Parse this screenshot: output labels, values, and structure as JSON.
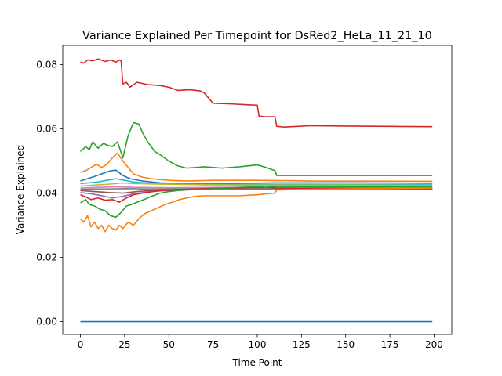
{
  "chart_data": {
    "type": "line",
    "title": "Variance Explained Per Timepoint for DsRed2_HeLa_11_21_10",
    "xlabel": "Time Point",
    "ylabel": "Variance Explained",
    "xlim": [
      -10,
      210
    ],
    "ylim": [
      -0.004,
      0.086
    ],
    "xticks": [
      0,
      25,
      50,
      75,
      100,
      125,
      150,
      175,
      200
    ],
    "yticks": [
      0.0,
      0.02,
      0.04,
      0.06,
      0.08
    ],
    "ytick_labels": [
      "0.00",
      "0.02",
      "0.04",
      "0.06",
      "0.08"
    ],
    "grid": false,
    "legend": "none",
    "series": [
      {
        "color": "#d62728",
        "points": [
          [
            0,
            0.0808
          ],
          [
            2,
            0.0805
          ],
          [
            4,
            0.0815
          ],
          [
            7,
            0.0812
          ],
          [
            10,
            0.0818
          ],
          [
            14,
            0.081
          ],
          [
            17,
            0.0815
          ],
          [
            20,
            0.0808
          ],
          [
            22,
            0.0815
          ],
          [
            23,
            0.0812
          ],
          [
            24,
            0.074
          ],
          [
            26,
            0.0745
          ],
          [
            28,
            0.073
          ],
          [
            32,
            0.0745
          ],
          [
            38,
            0.0738
          ],
          [
            45,
            0.0735
          ],
          [
            50,
            0.073
          ],
          [
            55,
            0.072
          ],
          [
            62,
            0.0722
          ],
          [
            68,
            0.0718
          ],
          [
            70,
            0.0712
          ],
          [
            75,
            0.068
          ],
          [
            85,
            0.0678
          ],
          [
            95,
            0.0675
          ],
          [
            100,
            0.0674
          ],
          [
            101,
            0.064
          ],
          [
            104,
            0.0638
          ],
          [
            110,
            0.0638
          ],
          [
            111,
            0.0608
          ],
          [
            115,
            0.0606
          ],
          [
            130,
            0.061
          ],
          [
            150,
            0.0609
          ],
          [
            175,
            0.0608
          ],
          [
            199,
            0.0607
          ]
        ]
      },
      {
        "color": "#2ca02c",
        "points": [
          [
            0,
            0.053
          ],
          [
            3,
            0.0545
          ],
          [
            5,
            0.0535
          ],
          [
            7,
            0.056
          ],
          [
            10,
            0.054
          ],
          [
            13,
            0.0555
          ],
          [
            15,
            0.055
          ],
          [
            18,
            0.0545
          ],
          [
            21,
            0.056
          ],
          [
            24,
            0.051
          ],
          [
            27,
            0.058
          ],
          [
            30,
            0.062
          ],
          [
            33,
            0.0615
          ],
          [
            35,
            0.059
          ],
          [
            38,
            0.056
          ],
          [
            42,
            0.053
          ],
          [
            45,
            0.052
          ],
          [
            50,
            0.05
          ],
          [
            55,
            0.0485
          ],
          [
            60,
            0.0478
          ],
          [
            70,
            0.0482
          ],
          [
            80,
            0.0478
          ],
          [
            90,
            0.0482
          ],
          [
            100,
            0.0488
          ],
          [
            105,
            0.048
          ],
          [
            110,
            0.047
          ],
          [
            111,
            0.0455
          ],
          [
            130,
            0.0455
          ],
          [
            160,
            0.0455
          ],
          [
            199,
            0.0455
          ]
        ]
      },
      {
        "color": "#ff7f0e",
        "points": [
          [
            0,
            0.0465
          ],
          [
            3,
            0.047
          ],
          [
            6,
            0.048
          ],
          [
            9,
            0.049
          ],
          [
            12,
            0.048
          ],
          [
            15,
            0.049
          ],
          [
            18,
            0.051
          ],
          [
            21,
            0.0525
          ],
          [
            24,
            0.05
          ],
          [
            27,
            0.048
          ],
          [
            30,
            0.046
          ],
          [
            35,
            0.045
          ],
          [
            40,
            0.0445
          ],
          [
            50,
            0.044
          ],
          [
            60,
            0.0438
          ],
          [
            75,
            0.044
          ],
          [
            100,
            0.044
          ],
          [
            130,
            0.0438
          ],
          [
            199,
            0.0437
          ]
        ]
      },
      {
        "color": "#1f77b4",
        "points": [
          [
            0,
            0.0438
          ],
          [
            4,
            0.0445
          ],
          [
            8,
            0.0452
          ],
          [
            12,
            0.046
          ],
          [
            16,
            0.0468
          ],
          [
            20,
            0.0472
          ],
          [
            24,
            0.0455
          ],
          [
            28,
            0.0445
          ],
          [
            35,
            0.0438
          ],
          [
            45,
            0.0432
          ],
          [
            60,
            0.043
          ],
          [
            80,
            0.043
          ],
          [
            110,
            0.0432
          ],
          [
            150,
            0.0432
          ],
          [
            199,
            0.0431
          ]
        ]
      },
      {
        "color": "#17becf",
        "points": [
          [
            0,
            0.043
          ],
          [
            5,
            0.0432
          ],
          [
            10,
            0.0435
          ],
          [
            15,
            0.044
          ],
          [
            20,
            0.0445
          ],
          [
            25,
            0.044
          ],
          [
            30,
            0.0435
          ],
          [
            40,
            0.043
          ],
          [
            60,
            0.0428
          ],
          [
            90,
            0.0427
          ],
          [
            130,
            0.0427
          ],
          [
            199,
            0.0426
          ]
        ]
      },
      {
        "color": "#bcbd22",
        "points": [
          [
            0,
            0.0422
          ],
          [
            8,
            0.0425
          ],
          [
            16,
            0.0428
          ],
          [
            24,
            0.0432
          ],
          [
            30,
            0.043
          ],
          [
            45,
            0.0428
          ],
          [
            70,
            0.0426
          ],
          [
            110,
            0.0425
          ],
          [
            160,
            0.0425
          ],
          [
            199,
            0.0424
          ]
        ]
      },
      {
        "color": "#e377c2",
        "points": [
          [
            0,
            0.0416
          ],
          [
            10,
            0.0418
          ],
          [
            20,
            0.042
          ],
          [
            30,
            0.0418
          ],
          [
            50,
            0.0417
          ],
          [
            80,
            0.0418
          ],
          [
            120,
            0.0418
          ],
          [
            199,
            0.0417
          ]
        ]
      },
      {
        "color": "#7f7f7f",
        "points": [
          [
            0,
            0.0412
          ],
          [
            10,
            0.0413
          ],
          [
            25,
            0.0414
          ],
          [
            40,
            0.0413
          ],
          [
            70,
            0.0414
          ],
          [
            110,
            0.0414
          ],
          [
            199,
            0.0414
          ]
        ]
      },
      {
        "color": "#8c564b",
        "points": [
          [
            0,
            0.0408
          ],
          [
            8,
            0.0405
          ],
          [
            16,
            0.0402
          ],
          [
            24,
            0.04
          ],
          [
            32,
            0.0405
          ],
          [
            45,
            0.041
          ],
          [
            70,
            0.0413
          ],
          [
            110,
            0.0413
          ],
          [
            199,
            0.0412
          ]
        ]
      },
      {
        "color": "#9467bd",
        "points": [
          [
            0,
            0.0402
          ],
          [
            6,
            0.0398
          ],
          [
            12,
            0.0392
          ],
          [
            18,
            0.0385
          ],
          [
            24,
            0.039
          ],
          [
            30,
            0.0398
          ],
          [
            40,
            0.0405
          ],
          [
            55,
            0.041
          ],
          [
            80,
            0.0412
          ],
          [
            120,
            0.0412
          ],
          [
            199,
            0.0411
          ]
        ]
      },
      {
        "color": "#d62728",
        "points": [
          [
            0,
            0.0395
          ],
          [
            3,
            0.0388
          ],
          [
            6,
            0.038
          ],
          [
            10,
            0.0385
          ],
          [
            14,
            0.0378
          ],
          [
            18,
            0.038
          ],
          [
            22,
            0.0372
          ],
          [
            26,
            0.0385
          ],
          [
            30,
            0.0395
          ],
          [
            35,
            0.04
          ],
          [
            45,
            0.0408
          ],
          [
            60,
            0.0412
          ],
          [
            75,
            0.0415
          ],
          [
            100,
            0.0418
          ],
          [
            110,
            0.0418
          ],
          [
            111,
            0.0415
          ],
          [
            150,
            0.0415
          ],
          [
            199,
            0.0414
          ]
        ]
      },
      {
        "color": "#2ca02c",
        "points": [
          [
            0,
            0.037
          ],
          [
            3,
            0.038
          ],
          [
            5,
            0.0365
          ],
          [
            8,
            0.036
          ],
          [
            11,
            0.035
          ],
          [
            14,
            0.0345
          ],
          [
            17,
            0.033
          ],
          [
            20,
            0.0325
          ],
          [
            23,
            0.034
          ],
          [
            26,
            0.036
          ],
          [
            29,
            0.0365
          ],
          [
            32,
            0.0372
          ],
          [
            36,
            0.038
          ],
          [
            40,
            0.039
          ],
          [
            45,
            0.04
          ],
          [
            50,
            0.0405
          ],
          [
            55,
            0.0408
          ],
          [
            60,
            0.041
          ],
          [
            70,
            0.0412
          ],
          [
            80,
            0.0415
          ],
          [
            90,
            0.0418
          ],
          [
            100,
            0.042
          ],
          [
            105,
            0.0418
          ],
          [
            110,
            0.0422
          ],
          [
            111,
            0.042
          ],
          [
            130,
            0.042
          ],
          [
            160,
            0.042
          ],
          [
            199,
            0.042
          ]
        ]
      },
      {
        "color": "#ff7f0e",
        "points": [
          [
            0,
            0.032
          ],
          [
            2,
            0.031
          ],
          [
            4,
            0.033
          ],
          [
            6,
            0.0295
          ],
          [
            8,
            0.031
          ],
          [
            10,
            0.029
          ],
          [
            12,
            0.03
          ],
          [
            14,
            0.028
          ],
          [
            16,
            0.03
          ],
          [
            18,
            0.029
          ],
          [
            20,
            0.0285
          ],
          [
            22,
            0.03
          ],
          [
            24,
            0.029
          ],
          [
            27,
            0.031
          ],
          [
            30,
            0.03
          ],
          [
            33,
            0.032
          ],
          [
            36,
            0.0335
          ],
          [
            40,
            0.0345
          ],
          [
            44,
            0.0355
          ],
          [
            48,
            0.0365
          ],
          [
            52,
            0.0372
          ],
          [
            56,
            0.038
          ],
          [
            60,
            0.0385
          ],
          [
            65,
            0.039
          ],
          [
            70,
            0.0392
          ],
          [
            80,
            0.0392
          ],
          [
            90,
            0.0392
          ],
          [
            100,
            0.0395
          ],
          [
            105,
            0.0398
          ],
          [
            110,
            0.04
          ],
          [
            111,
            0.041
          ],
          [
            130,
            0.0412
          ],
          [
            160,
            0.0414
          ],
          [
            199,
            0.0416
          ]
        ]
      },
      {
        "color": "#1f77b4",
        "points": [
          [
            0,
            0.0
          ],
          [
            199,
            0.0
          ]
        ]
      }
    ]
  }
}
